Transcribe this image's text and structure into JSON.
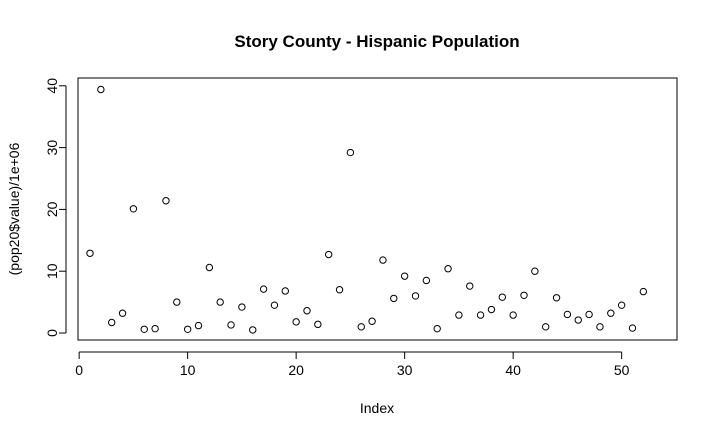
{
  "chart_data": {
    "type": "scatter",
    "title": "Story County - Hispanic Population",
    "xlabel": "Index",
    "ylabel": "(pop20$value)/1e+06",
    "xlim": [
      1,
      52
    ],
    "ylim": [
      0,
      40
    ],
    "x_ticks": [
      0,
      10,
      20,
      30,
      40,
      50
    ],
    "y_ticks": [
      0,
      10,
      20,
      30,
      40
    ],
    "grid": false,
    "legend": "none",
    "marker": "open-circle",
    "x": [
      1,
      2,
      3,
      4,
      5,
      6,
      7,
      8,
      9,
      10,
      11,
      12,
      13,
      14,
      15,
      16,
      17,
      18,
      19,
      20,
      21,
      22,
      23,
      24,
      25,
      26,
      27,
      28,
      29,
      30,
      31,
      32,
      33,
      34,
      35,
      36,
      37,
      38,
      39,
      40,
      41,
      42,
      43,
      44,
      45,
      46,
      47,
      48,
      49,
      50,
      51,
      52
    ],
    "y": [
      12.9,
      39.4,
      1.7,
      3.2,
      20.1,
      0.6,
      0.7,
      21.4,
      5.0,
      0.6,
      1.2,
      10.6,
      5.0,
      1.3,
      4.2,
      0.5,
      7.1,
      4.5,
      6.8,
      1.8,
      3.6,
      1.4,
      12.7,
      7.0,
      29.2,
      1.0,
      1.9,
      11.8,
      5.6,
      9.2,
      6.0,
      8.5,
      0.7,
      10.4,
      2.9,
      7.6,
      2.9,
      3.8,
      5.8,
      2.9,
      6.1,
      10.0,
      1.0,
      5.7,
      3.0,
      2.1,
      3.0,
      1.0,
      3.2,
      4.5,
      0.8,
      6.7
    ]
  }
}
